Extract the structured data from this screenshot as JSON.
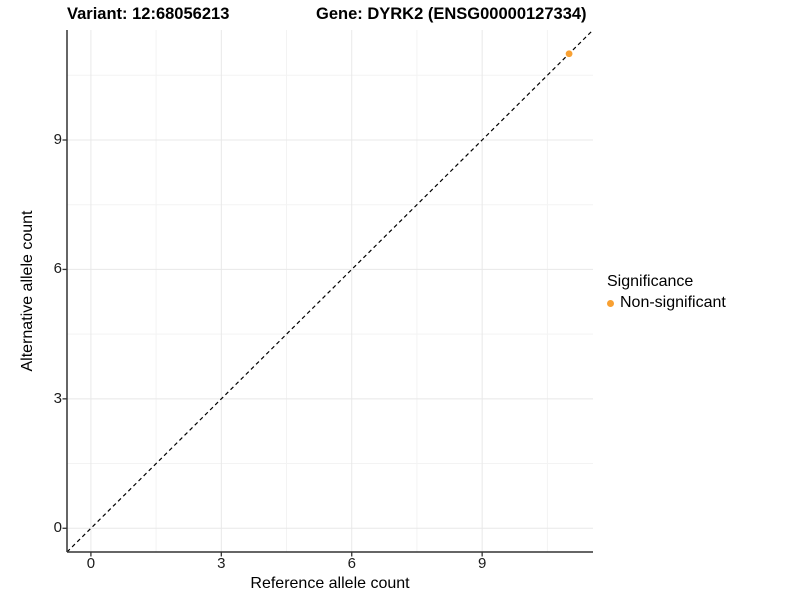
{
  "titles": {
    "variant": "Variant: 12:68056213",
    "gene": "Gene: DYRK2 (ENSG00000127334)"
  },
  "chart_data": {
    "type": "scatter",
    "title_left": "Variant: 12:68056213",
    "title_right": "Gene: DYRK2 (ENSG00000127334)",
    "xlabel": "Reference allele count",
    "ylabel": "Alternative allele count",
    "x_ticks": [
      0,
      3,
      6,
      9
    ],
    "y_ticks": [
      0,
      3,
      6,
      9
    ],
    "x_minor": [
      1.5,
      4.5,
      7.5,
      10.5
    ],
    "y_minor": [
      1.5,
      4.5,
      7.5,
      10.5
    ],
    "xlim": [
      -0.55,
      11.55
    ],
    "ylim": [
      -0.55,
      11.55
    ],
    "grid": "major+minor",
    "points": [
      {
        "x": 11,
        "y": 11,
        "significance": "Non-significant",
        "color": "#F8A032"
      }
    ],
    "identity_line": {
      "type": "y=x",
      "style": "dashed",
      "color": "#000000"
    },
    "legend": {
      "title": "Significance",
      "position": "right",
      "items": [
        {
          "label": "Non-significant",
          "color": "#F8A032"
        }
      ]
    }
  },
  "colors": {
    "background": "#FFFFFF",
    "axis_line": "#333333",
    "tick_mark": "#333333",
    "grid_major": "#E8E8E8",
    "grid_minor": "#F3F3F3",
    "point": "#F8A032"
  }
}
